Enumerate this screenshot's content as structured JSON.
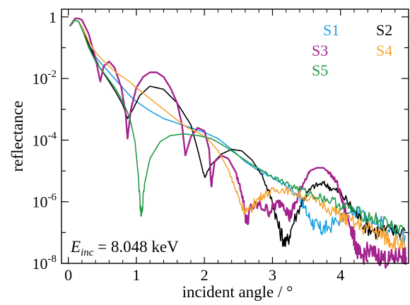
{
  "chart_data": {
    "type": "line",
    "title": "",
    "xlabel": "incident angle / °",
    "ylabel": "reflectance",
    "xlim": [
      -0.1,
      5.0
    ],
    "ylim_log10": [
      -8,
      0.25
    ],
    "y_scale": "log",
    "grid": false,
    "legend_position": "top-right",
    "annotation": {
      "symbol": "E",
      "subscript": "inc",
      "text": " = 8.048 keV"
    },
    "x_ticks": [
      {
        "value": 0,
        "label": "0"
      },
      {
        "value": 1,
        "label": "1"
      },
      {
        "value": 2,
        "label": "2"
      },
      {
        "value": 3,
        "label": "3"
      },
      {
        "value": 4,
        "label": "4"
      }
    ],
    "y_ticks": [
      {
        "exp": 0,
        "base": "1",
        "sup": ""
      },
      {
        "exp": -2,
        "base": "10",
        "sup": "-2"
      },
      {
        "exp": -4,
        "base": "10",
        "sup": "-4"
      },
      {
        "exp": -6,
        "base": "10",
        "sup": "-6"
      },
      {
        "exp": -8,
        "base": "10",
        "sup": "-8"
      }
    ],
    "series": [
      {
        "name": "S1",
        "color": "#1ba0de",
        "x": [
          0.02,
          0.08,
          0.15,
          0.22,
          0.3,
          0.4,
          0.5,
          0.6,
          0.7,
          0.8,
          0.9,
          1.0,
          1.2,
          1.4,
          1.6,
          1.8,
          2.0,
          2.2,
          2.4,
          2.6,
          2.8,
          3.0,
          3.2,
          3.4,
          3.5,
          3.6,
          3.7,
          3.8,
          4.0,
          4.2,
          4.4,
          4.6,
          4.8,
          4.95
        ],
        "log10": [
          -0.3,
          -0.1,
          -0.15,
          -0.4,
          -0.9,
          -1.3,
          -1.55,
          -1.8,
          -2.05,
          -2.3,
          -2.55,
          -2.75,
          -3.05,
          -3.3,
          -3.45,
          -3.6,
          -3.75,
          -3.95,
          -4.3,
          -4.7,
          -5.0,
          -5.2,
          -5.45,
          -5.85,
          -6.35,
          -6.7,
          -6.9,
          -6.85,
          -6.55,
          -6.35,
          -6.45,
          -6.7,
          -7.05,
          -7.1
        ]
      },
      {
        "name": "S2",
        "color": "#000000",
        "x": [
          0.02,
          0.08,
          0.15,
          0.22,
          0.3,
          0.45,
          0.6,
          0.7,
          0.8,
          0.87,
          0.95,
          1.05,
          1.2,
          1.4,
          1.6,
          1.8,
          1.9,
          2.0,
          2.1,
          2.25,
          2.4,
          2.55,
          2.7,
          2.85,
          3.0,
          3.1,
          3.2,
          3.3,
          3.45,
          3.6,
          3.75,
          3.85,
          4.0,
          4.2,
          4.35,
          4.5,
          4.7,
          4.95
        ],
        "log10": [
          -0.3,
          -0.1,
          -0.15,
          -0.4,
          -0.9,
          -1.6,
          -2.1,
          -2.45,
          -2.85,
          -3.3,
          -3.0,
          -2.55,
          -2.25,
          -2.35,
          -2.8,
          -3.5,
          -4.3,
          -5.2,
          -4.8,
          -4.45,
          -4.3,
          -4.35,
          -4.65,
          -5.15,
          -6.0,
          -6.9,
          -7.4,
          -6.7,
          -5.9,
          -5.5,
          -5.4,
          -5.55,
          -5.7,
          -6.3,
          -6.75,
          -6.95,
          -6.95,
          -6.95
        ]
      },
      {
        "name": "S3",
        "color": "#a3238e",
        "x": [
          0.02,
          0.06,
          0.1,
          0.15,
          0.2,
          0.3,
          0.4,
          0.47,
          0.52,
          0.6,
          0.68,
          0.78,
          0.84,
          0.87,
          0.92,
          1.0,
          1.1,
          1.2,
          1.3,
          1.4,
          1.5,
          1.6,
          1.67,
          1.72,
          1.8,
          1.9,
          2.0,
          2.07,
          2.1,
          2.15,
          2.25,
          2.35,
          2.45,
          2.55,
          2.62,
          2.68,
          2.8,
          2.95,
          3.05,
          3.15,
          3.25,
          3.35,
          3.45,
          3.55,
          3.65,
          3.75,
          3.85,
          3.95,
          4.05,
          4.15,
          4.2,
          4.25,
          4.3,
          4.4,
          4.5,
          4.6,
          4.7,
          4.8,
          4.9,
          4.97
        ],
        "log10": [
          -0.3,
          -0.2,
          -0.05,
          -0.05,
          -0.1,
          -0.55,
          -1.35,
          -2.1,
          -1.6,
          -1.45,
          -1.65,
          -2.3,
          -3.1,
          -3.95,
          -3.0,
          -2.3,
          -1.95,
          -1.8,
          -1.8,
          -1.95,
          -2.3,
          -2.8,
          -3.5,
          -4.5,
          -3.9,
          -3.6,
          -3.7,
          -4.3,
          -5.5,
          -4.7,
          -4.5,
          -4.6,
          -5.0,
          -5.7,
          -6.7,
          -6.2,
          -6.1,
          -6.3,
          -6.1,
          -6.0,
          -6.5,
          -6.0,
          -5.4,
          -5.0,
          -4.9,
          -4.9,
          -5.1,
          -5.4,
          -6.2,
          -6.8,
          -7.2,
          -7.6,
          -7.8,
          -7.6,
          -7.7,
          -7.8,
          -7.9,
          -7.8,
          -7.7,
          -7.8
        ]
      },
      {
        "name": "S4",
        "color": "#f7a535",
        "x": [
          0.02,
          0.08,
          0.15,
          0.22,
          0.3,
          0.4,
          0.5,
          0.6,
          0.7,
          0.8,
          0.9,
          1.0,
          1.2,
          1.4,
          1.6,
          1.75,
          1.9,
          2.05,
          2.2,
          2.35,
          2.45,
          2.55,
          2.65,
          2.75,
          2.85,
          3.0,
          3.15,
          3.3,
          3.5,
          3.7,
          3.9,
          4.0,
          4.1,
          4.3,
          4.5,
          4.6,
          4.7,
          4.8,
          4.95
        ],
        "log10": [
          -0.3,
          -0.1,
          -0.15,
          -0.4,
          -0.8,
          -1.15,
          -1.4,
          -1.6,
          -1.8,
          -1.95,
          -2.1,
          -2.3,
          -2.65,
          -3.0,
          -3.35,
          -3.6,
          -3.75,
          -3.95,
          -4.35,
          -4.95,
          -5.55,
          -6.15,
          -6.35,
          -6.0,
          -5.8,
          -5.65,
          -5.6,
          -5.7,
          -5.85,
          -6.05,
          -6.3,
          -6.45,
          -6.6,
          -6.8,
          -6.95,
          -7.05,
          -7.2,
          -7.3,
          -7.4
        ]
      },
      {
        "name": "S5",
        "color": "#1f9a48",
        "x": [
          0.02,
          0.08,
          0.15,
          0.22,
          0.3,
          0.4,
          0.5,
          0.6,
          0.7,
          0.8,
          0.9,
          0.98,
          1.03,
          1.07,
          1.12,
          1.2,
          1.35,
          1.5,
          1.7,
          1.9,
          2.1,
          2.3,
          2.5,
          2.7,
          2.9,
          3.1,
          3.3,
          3.5,
          3.7,
          3.9,
          4.1,
          4.3,
          4.5,
          4.7,
          4.95
        ],
        "log10": [
          -0.3,
          -0.1,
          -0.15,
          -0.5,
          -1.0,
          -1.45,
          -1.75,
          -2.05,
          -2.35,
          -2.75,
          -3.25,
          -4.05,
          -5.2,
          -6.6,
          -5.4,
          -4.6,
          -4.05,
          -3.85,
          -3.8,
          -3.85,
          -3.95,
          -4.2,
          -4.5,
          -4.8,
          -5.05,
          -5.3,
          -5.5,
          -5.7,
          -5.85,
          -6.0,
          -6.2,
          -6.4,
          -6.55,
          -6.75,
          -6.95
        ]
      }
    ]
  }
}
